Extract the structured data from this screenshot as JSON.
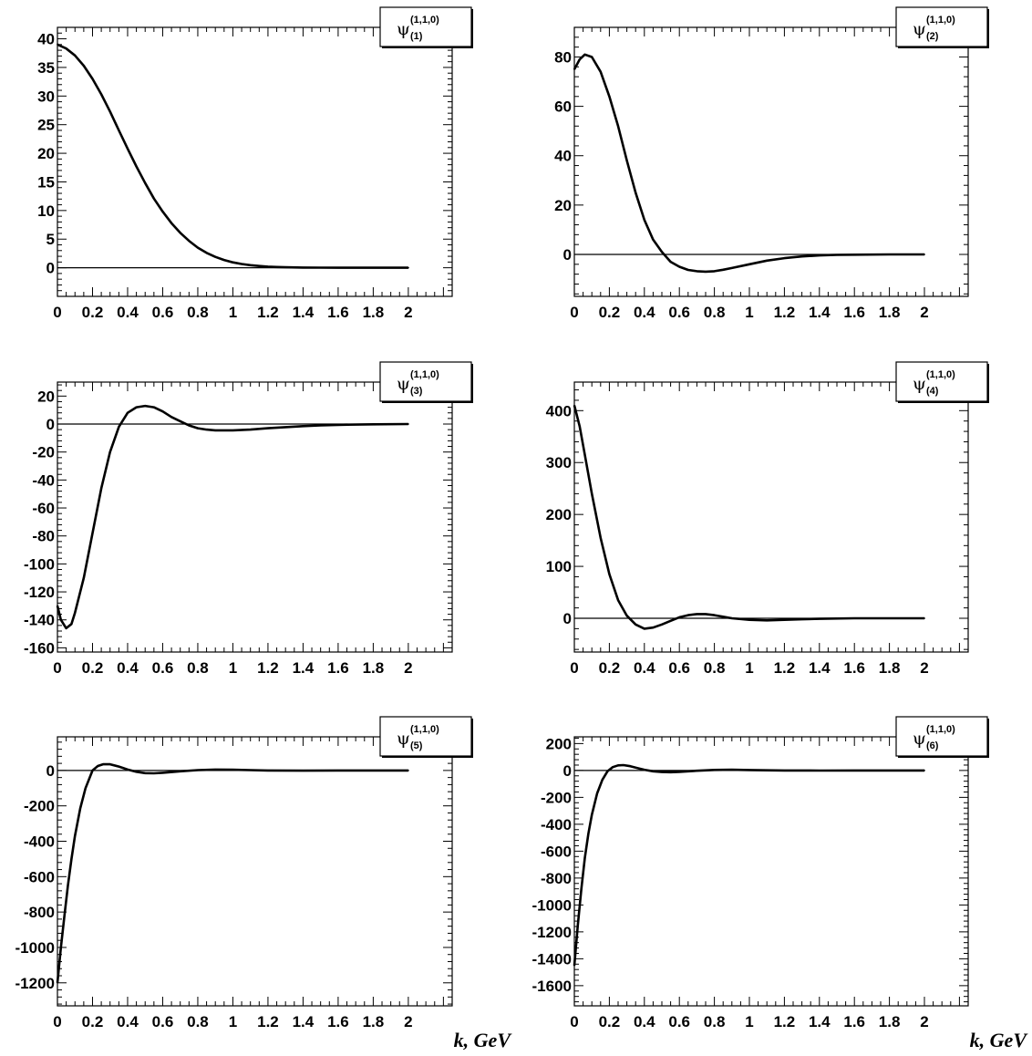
{
  "chart_data": [
    {
      "type": "line",
      "legend": {
        "symbol": "ψ",
        "superscript": "(1,1,0)",
        "subscript": "(1)"
      },
      "xlim": [
        0,
        2.25
      ],
      "ylim": [
        -5,
        42
      ],
      "xticks": [
        0,
        0.2,
        0.4,
        0.6,
        0.8,
        1,
        1.2,
        1.4,
        1.6,
        1.8,
        2
      ],
      "xtick_labels": [
        "0",
        "0.2",
        "0.4",
        "0.6",
        "0.8",
        "1",
        "1.2",
        "1.4",
        "1.6",
        "1.8",
        "2"
      ],
      "yticks": [
        0,
        5,
        10,
        15,
        20,
        25,
        30,
        35,
        40
      ],
      "ytick_labels": [
        "0",
        "5",
        "10",
        "15",
        "20",
        "25",
        "30",
        "35",
        "40"
      ],
      "xlabel": "",
      "x": [
        0,
        0.05,
        0.1,
        0.15,
        0.2,
        0.25,
        0.3,
        0.35,
        0.4,
        0.45,
        0.5,
        0.55,
        0.6,
        0.65,
        0.7,
        0.75,
        0.8,
        0.85,
        0.9,
        0.95,
        1.0,
        1.05,
        1.1,
        1.15,
        1.2,
        1.25,
        1.3,
        1.4,
        1.5,
        1.6,
        1.7,
        1.8,
        1.9,
        2.0
      ],
      "y": [
        39.0,
        38.3,
        37.1,
        35.3,
        33.0,
        30.3,
        27.3,
        24.0,
        20.8,
        17.7,
        14.8,
        12.1,
        9.8,
        7.8,
        6.1,
        4.7,
        3.5,
        2.6,
        1.9,
        1.35,
        0.95,
        0.65,
        0.45,
        0.3,
        0.2,
        0.13,
        0.08,
        0.04,
        0.02,
        0.01,
        0,
        0,
        0,
        0
      ]
    },
    {
      "type": "line",
      "legend": {
        "symbol": "ψ",
        "superscript": "(1,1,0)",
        "subscript": "(2)"
      },
      "xlim": [
        0,
        2.25
      ],
      "ylim": [
        -17,
        92
      ],
      "xticks": [
        0,
        0.2,
        0.4,
        0.6,
        0.8,
        1,
        1.2,
        1.4,
        1.6,
        1.8,
        2
      ],
      "xtick_labels": [
        "0",
        "0.2",
        "0.4",
        "0.6",
        "0.8",
        "1",
        "1.2",
        "1.4",
        "1.6",
        "1.8",
        "2"
      ],
      "yticks": [
        0,
        20,
        40,
        60,
        80
      ],
      "ytick_labels": [
        "0",
        "20",
        "40",
        "60",
        "80"
      ],
      "xlabel": "",
      "x": [
        0,
        0.03,
        0.06,
        0.1,
        0.15,
        0.2,
        0.25,
        0.3,
        0.35,
        0.4,
        0.45,
        0.5,
        0.55,
        0.6,
        0.65,
        0.7,
        0.75,
        0.8,
        0.85,
        0.9,
        1.0,
        1.1,
        1.2,
        1.3,
        1.4,
        1.5,
        1.6,
        1.8,
        2.0
      ],
      "y": [
        75,
        79,
        81,
        80,
        74,
        64,
        52,
        38,
        25,
        14,
        6,
        1,
        -3,
        -5,
        -6.3,
        -6.8,
        -7,
        -6.8,
        -6.2,
        -5.5,
        -4,
        -2.5,
        -1.5,
        -0.8,
        -0.4,
        -0.2,
        -0.1,
        0,
        0
      ]
    },
    {
      "type": "line",
      "legend": {
        "symbol": "ψ",
        "superscript": "(1,1,0)",
        "subscript": "(3)"
      },
      "xlim": [
        0,
        2.25
      ],
      "ylim": [
        -163,
        30
      ],
      "xticks": [
        0,
        0.2,
        0.4,
        0.6,
        0.8,
        1,
        1.2,
        1.4,
        1.6,
        1.8,
        2
      ],
      "xtick_labels": [
        "0",
        "0.2",
        "0.4",
        "0.6",
        "0.8",
        "1",
        "1.2",
        "1.4",
        "1.6",
        "1.8",
        "2"
      ],
      "yticks": [
        -160,
        -140,
        -120,
        -100,
        -80,
        -60,
        -40,
        -20,
        0,
        20
      ],
      "ytick_labels": [
        "-160",
        "-140",
        "-120",
        "-100",
        "-80",
        "-60",
        "-40",
        "-20",
        "0",
        "20"
      ],
      "xlabel": "",
      "x": [
        0,
        0.02,
        0.05,
        0.08,
        0.1,
        0.15,
        0.2,
        0.25,
        0.3,
        0.35,
        0.4,
        0.45,
        0.5,
        0.55,
        0.6,
        0.65,
        0.7,
        0.75,
        0.8,
        0.85,
        0.9,
        1.0,
        1.1,
        1.2,
        1.3,
        1.4,
        1.5,
        1.6,
        1.8,
        2.0
      ],
      "y": [
        -130,
        -140,
        -146,
        -143,
        -135,
        -110,
        -78,
        -46,
        -20,
        -2,
        8,
        12,
        13,
        12,
        9,
        5,
        2,
        -1,
        -3,
        -4,
        -4.5,
        -4.5,
        -4,
        -3,
        -2.2,
        -1.5,
        -1,
        -0.6,
        -0.2,
        0
      ]
    },
    {
      "type": "line",
      "legend": {
        "symbol": "ψ",
        "superscript": "(1,1,0)",
        "subscript": "(4)"
      },
      "xlim": [
        0,
        2.25
      ],
      "ylim": [
        -65,
        455
      ],
      "xticks": [
        0,
        0.2,
        0.4,
        0.6,
        0.8,
        1,
        1.2,
        1.4,
        1.6,
        1.8,
        2
      ],
      "xtick_labels": [
        "0",
        "0.2",
        "0.4",
        "0.6",
        "0.8",
        "1",
        "1.2",
        "1.4",
        "1.6",
        "1.8",
        "2"
      ],
      "yticks": [
        0,
        100,
        200,
        300,
        400
      ],
      "ytick_labels": [
        "0",
        "100",
        "200",
        "300",
        "400"
      ],
      "xlabel": "",
      "x": [
        0,
        0.03,
        0.06,
        0.1,
        0.15,
        0.2,
        0.25,
        0.3,
        0.35,
        0.4,
        0.45,
        0.5,
        0.55,
        0.6,
        0.65,
        0.7,
        0.75,
        0.8,
        0.85,
        0.9,
        1.0,
        1.1,
        1.2,
        1.3,
        1.4,
        1.6,
        1.8,
        2.0
      ],
      "y": [
        410,
        370,
        315,
        240,
        155,
        85,
        35,
        5,
        -12,
        -20,
        -18,
        -12,
        -5,
        2,
        6,
        8,
        8,
        6,
        3,
        0,
        -3,
        -4,
        -3,
        -2,
        -1,
        0,
        0,
        0
      ]
    },
    {
      "type": "line",
      "legend": {
        "symbol": "ψ",
        "superscript": "(1,1,0)",
        "subscript": "(5)"
      },
      "xlim": [
        0,
        2.25
      ],
      "ylim": [
        -1330,
        190
      ],
      "xticks": [
        0,
        0.2,
        0.4,
        0.6,
        0.8,
        1,
        1.2,
        1.4,
        1.6,
        1.8,
        2
      ],
      "xtick_labels": [
        "0",
        "0.2",
        "0.4",
        "0.6",
        "0.8",
        "1",
        "1.2",
        "1.4",
        "1.6",
        "1.8",
        "2"
      ],
      "yticks": [
        -1200,
        -1000,
        -800,
        -600,
        -400,
        -200,
        0
      ],
      "ytick_labels": [
        "-1200",
        "-1000",
        "-800",
        "-600",
        "-400",
        "-200",
        "0"
      ],
      "xlabel": "k, GeV",
      "x": [
        0,
        0.02,
        0.04,
        0.06,
        0.08,
        0.1,
        0.13,
        0.16,
        0.2,
        0.23,
        0.26,
        0.3,
        0.35,
        0.4,
        0.45,
        0.5,
        0.55,
        0.6,
        0.7,
        0.8,
        0.9,
        1.0,
        1.1,
        1.2,
        1.4,
        1.6,
        1.8,
        2.0
      ],
      "y": [
        -1200,
        -1000,
        -820,
        -650,
        -500,
        -370,
        -215,
        -100,
        0,
        25,
        35,
        35,
        22,
        5,
        -8,
        -15,
        -16,
        -13,
        -5,
        2,
        5,
        4,
        2,
        0,
        -1,
        0,
        0,
        0
      ]
    },
    {
      "type": "line",
      "legend": {
        "symbol": "ψ",
        "superscript": "(1,1,0)",
        "subscript": "(6)"
      },
      "xlim": [
        0,
        2.25
      ],
      "ylim": [
        -1750,
        250
      ],
      "xticks": [
        0,
        0.2,
        0.4,
        0.6,
        0.8,
        1,
        1.2,
        1.4,
        1.6,
        1.8,
        2
      ],
      "xtick_labels": [
        "0",
        "0.2",
        "0.4",
        "0.6",
        "0.8",
        "1",
        "1.2",
        "1.4",
        "1.6",
        "1.8",
        "2"
      ],
      "yticks": [
        -1600,
        -1400,
        -1200,
        -1000,
        -800,
        -600,
        -400,
        -200,
        0,
        200
      ],
      "ytick_labels": [
        "-1600",
        "-1400",
        "-1200",
        "-1000",
        "-800",
        "-600",
        "-400",
        "-200",
        "0",
        "200"
      ],
      "xlabel": "k, GeV",
      "x": [
        0,
        0.02,
        0.04,
        0.06,
        0.08,
        0.1,
        0.13,
        0.16,
        0.19,
        0.22,
        0.25,
        0.28,
        0.32,
        0.36,
        0.4,
        0.45,
        0.5,
        0.55,
        0.6,
        0.7,
        0.8,
        0.9,
        1.0,
        1.2,
        1.4,
        1.6,
        1.8,
        2.0
      ],
      "y": [
        -1450,
        -1150,
        -880,
        -650,
        -470,
        -330,
        -170,
        -70,
        -5,
        25,
        38,
        40,
        32,
        18,
        5,
        -6,
        -12,
        -13,
        -10,
        -2,
        4,
        5,
        3,
        0,
        -1,
        0,
        0,
        0
      ]
    }
  ]
}
